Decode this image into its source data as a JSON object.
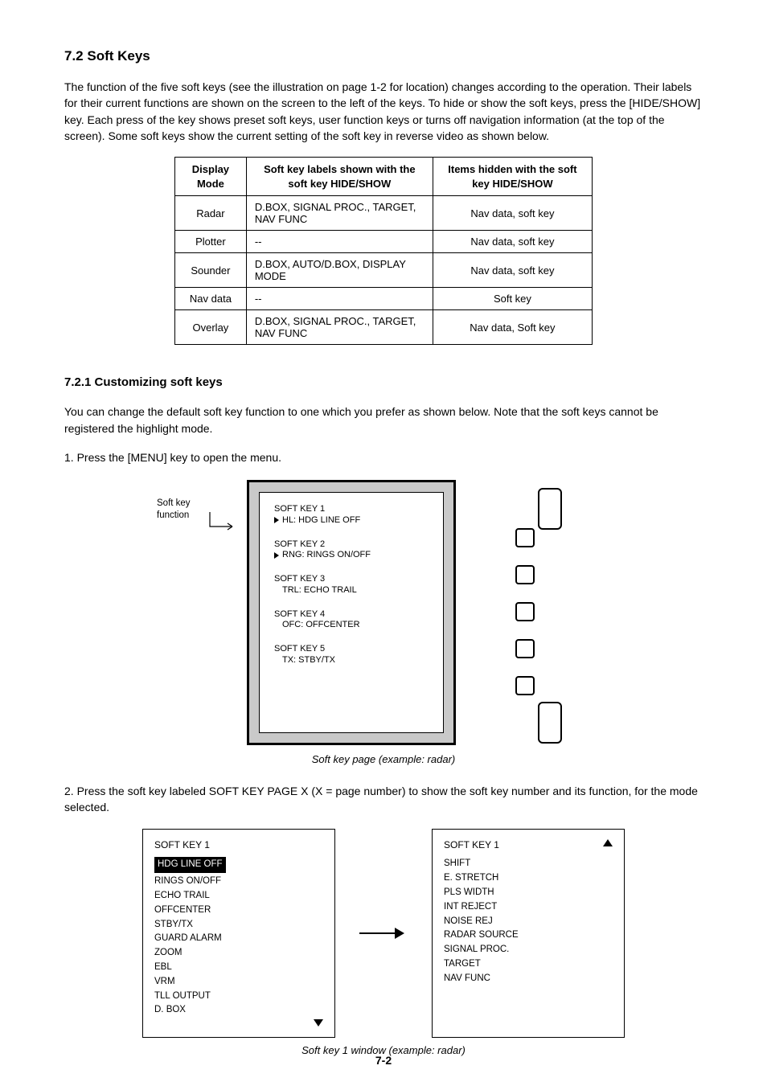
{
  "section_title": "7.2 Soft Keys",
  "intro_text": "The function of the five soft keys (see the illustration on page 1-2 for location) changes according to the operation. Their labels for their current functions are shown on the screen to the left of the keys. To hide or show the soft keys, press the [HIDE/SHOW] key. Each press of the key shows preset soft keys, user function keys or turns off navigation information (at the top of the screen). Some soft keys show the current setting of the soft key in reverse video as shown below.",
  "table": {
    "headers": [
      "Display Mode",
      "Soft key labels shown with the soft key HIDE/SHOW",
      "Items hidden with the soft key HIDE/SHOW"
    ],
    "rows": [
      [
        "Radar",
        "D.BOX, SIGNAL PROC., TARGET, NAV FUNC",
        "Nav data, soft key"
      ],
      [
        "Plotter",
        "--",
        "Nav data, soft key"
      ],
      [
        "Sounder",
        "D.BOX, AUTO/D.BOX, DISPLAY MODE",
        "Nav data, soft key"
      ],
      [
        "Nav data",
        "--",
        "Soft key"
      ],
      [
        "Overlay",
        "D.BOX, SIGNAL PROC., TARGET, NAV FUNC",
        "Nav data, Soft key"
      ]
    ]
  },
  "section1": {
    "title": "7.2.1 Customizing soft keys",
    "text": "You can change the default soft key function to one which you prefer as shown below. Note that the soft keys cannot be registered the highlight mode.",
    "step1": "1. Press the [MENU] key to open the menu."
  },
  "device": {
    "pointer_label_top": "Soft key",
    "pointer_label_bot": "function",
    "sk": [
      {
        "label": "SOFT KEY 1",
        "arrow": true,
        "value": "HL: HDG LINE OFF"
      },
      {
        "label": "SOFT KEY 2",
        "arrow": true,
        "value": "RNG: RINGS ON/OFF"
      },
      {
        "label": "SOFT KEY 3",
        "arrow": false,
        "value": "TRL: ECHO TRAIL"
      },
      {
        "label": "SOFT KEY 4",
        "arrow": false,
        "value": "OFC: OFFCENTER"
      },
      {
        "label": "SOFT KEY 5",
        "arrow": false,
        "value": "TX: STBY/TX"
      }
    ],
    "caption": "Soft key page (example: radar)"
  },
  "step2": "2. Press the soft key labeled SOFT KEY PAGE X (X = page number) to show the soft key number and its function, for the mode selected.",
  "menus": {
    "left": {
      "title": "SOFT KEY 1",
      "selected": "HDG LINE OFF",
      "items": [
        "RINGS ON/OFF",
        "ECHO TRAIL",
        "OFFCENTER",
        "STBY/TX",
        "GUARD ALARM",
        "ZOOM",
        "EBL",
        "VRM",
        "TLL OUTPUT",
        "D. BOX"
      ]
    },
    "right": {
      "title": "SOFT KEY 1",
      "items": [
        "SHIFT",
        "E. STRETCH",
        "PLS WIDTH",
        "INT REJECT",
        "NOISE REJ",
        "RADAR SOURCE",
        "SIGNAL PROC.",
        "TARGET",
        "NAV FUNC"
      ]
    },
    "caption": "Soft key 1 window (example: radar)"
  },
  "page_number": "7-2"
}
